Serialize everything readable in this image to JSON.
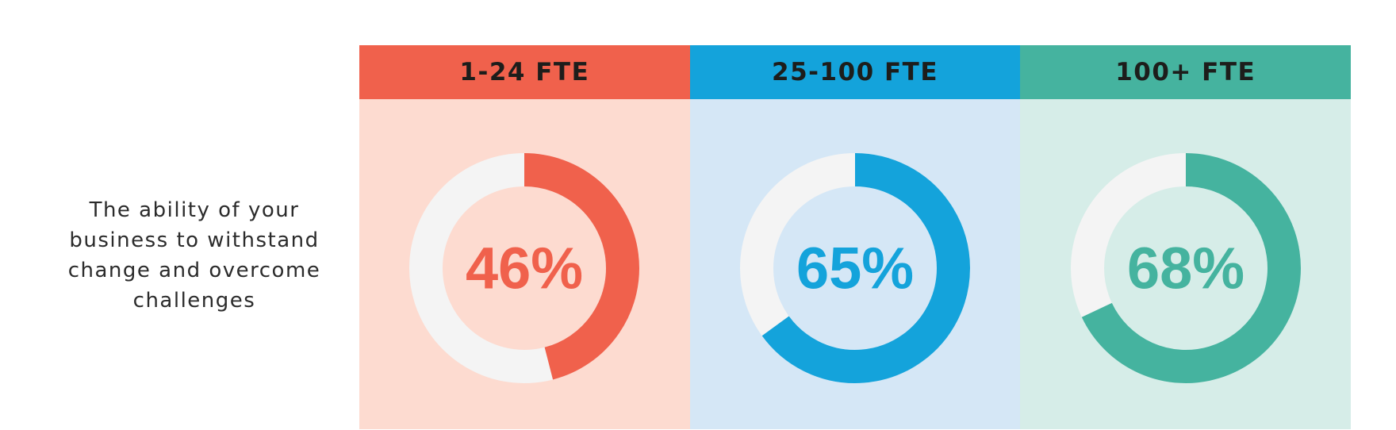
{
  "row_label": "The ability of your business to withstand change and overcome challenges",
  "columns": [
    {
      "header": "1-24 FTE",
      "value_label": "46%",
      "header_color": "#f0614c",
      "body_color": "#fddbd0",
      "ring_color": "#f0614c"
    },
    {
      "header": "25-100 FTE",
      "value_label": "65%",
      "header_color": "#14a3db",
      "body_color": "#d5e7f6",
      "ring_color": "#14a3db"
    },
    {
      "header": "100+ FTE",
      "value_label": "68%",
      "header_color": "#45b39f",
      "body_color": "#d6ede8",
      "ring_color": "#45b39f"
    }
  ],
  "chart_data": {
    "type": "pie",
    "title": "The ability of your business to withstand change and overcome challenges",
    "categories": [
      "1-24 FTE",
      "25-100 FTE",
      "100+ FTE"
    ],
    "values": [
      46,
      65,
      68
    ],
    "unit": "%",
    "track_color": "#f4f4f4"
  }
}
